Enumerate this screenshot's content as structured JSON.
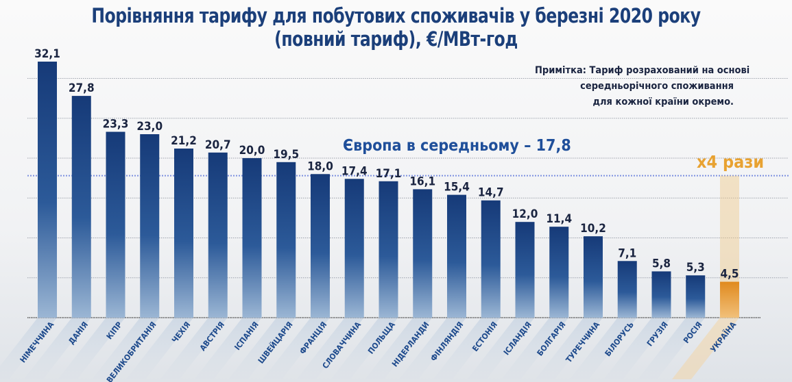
{
  "chart_data": {
    "type": "bar",
    "title_line1": "Порівняння тарифу для побутових споживачів у березні 2020 року",
    "title_line2": "(повний тариф), €/МВт-год",
    "note": [
      "Примітка: Тариф розрахований на основі",
      "середньорічного споживання",
      "для кожної країни окремо."
    ],
    "average": {
      "label": "Європа в середньому – 17,8",
      "value": 17.8,
      "color": "#7b8fe0"
    },
    "highlight": {
      "category": "УКРАЇНА",
      "label": "x4 рази",
      "color": "#e8a232"
    },
    "categories": [
      "НІМЕЧЧИНА",
      "ДАНІЯ",
      "КІПР",
      "ВЕЛИКОБРИТАНІЯ",
      "ЧЕХІЯ",
      "АВСТРІЯ",
      "ІСПАНІЯ",
      "ШВЕЙЦАРІЯ",
      "ФРАНЦІЯ",
      "СЛОВАЧЧИНА",
      "ПОЛЬЩА",
      "НІДЕРЛАНДИ",
      "ФІНЛЯНДІЯ",
      "ЕСТОНІЯ",
      "ІСЛАНДІЯ",
      "БОЛГАРІЯ",
      "ТУРЕЧЧИНА",
      "БІЛОРУСЬ",
      "ГРУЗІЯ",
      "РОСІЯ",
      "УКРАЇНА"
    ],
    "values": [
      32.1,
      27.8,
      23.3,
      23.0,
      21.2,
      20.7,
      20.0,
      19.5,
      18.0,
      17.4,
      17.1,
      16.1,
      15.4,
      14.7,
      12.0,
      11.4,
      10.2,
      7.1,
      5.8,
      5.3,
      4.5
    ],
    "value_labels": [
      "32,1",
      "27,8",
      "23,3",
      "23,0",
      "21,2",
      "20,7",
      "20,0",
      "19,5",
      "18,0",
      "17,4",
      "17,1",
      "16,1",
      "15,4",
      "14,7",
      "12,0",
      "11,4",
      "10,2",
      "7,1",
      "5,8",
      "5,3",
      "4,5"
    ],
    "ylim": [
      0,
      34
    ],
    "gridlines": [
      5,
      10,
      15,
      20,
      25,
      30
    ],
    "grid": true,
    "bar_color": "#163a78",
    "xlabel": "",
    "ylabel": ""
  }
}
